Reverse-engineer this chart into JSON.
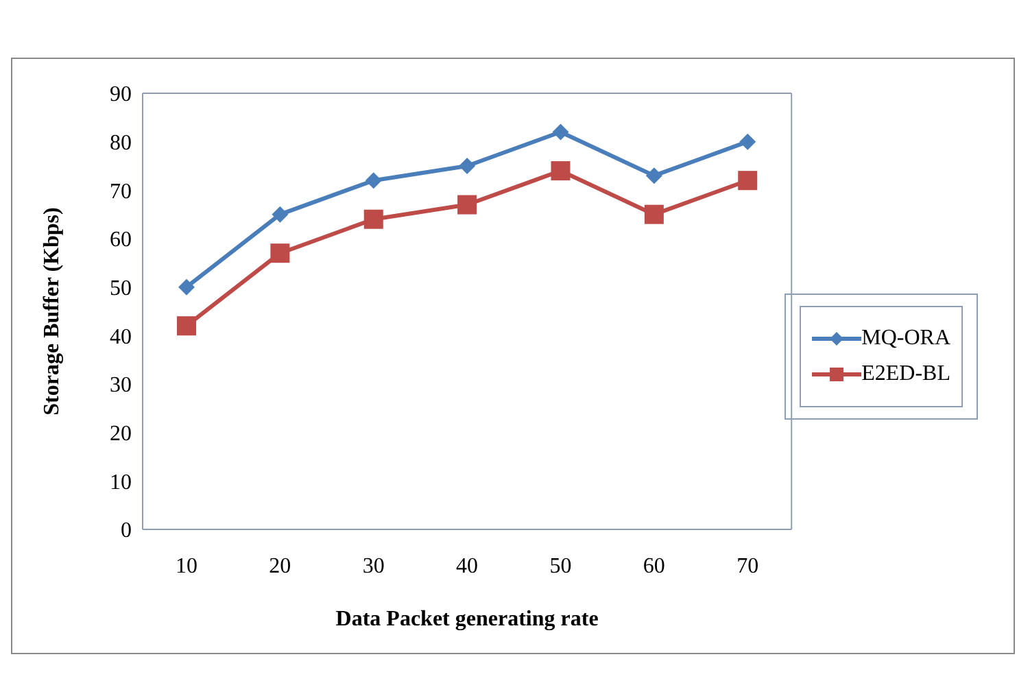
{
  "chart_data": {
    "type": "line",
    "xlabel": "Data Packet generating rate",
    "ylabel": "Storage Buffer (Kbps)",
    "categories": [
      "10",
      "20",
      "30",
      "40",
      "50",
      "60",
      "70"
    ],
    "series": [
      {
        "name": "MQ-ORA",
        "color": "#4a7ebb",
        "marker": "diamond",
        "values": [
          50,
          65,
          72,
          75,
          82,
          73,
          80
        ]
      },
      {
        "name": "E2ED-BL",
        "color": "#be4b48",
        "marker": "square",
        "values": [
          42,
          57,
          64,
          67,
          74,
          65,
          72
        ]
      }
    ],
    "ylim": [
      0,
      90
    ],
    "yticks": [
      0,
      10,
      20,
      30,
      40,
      50,
      60,
      70,
      80,
      90
    ],
    "grid": false,
    "legend": "right"
  }
}
